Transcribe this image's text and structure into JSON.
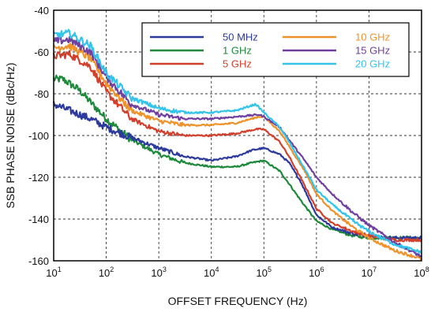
{
  "chart_data": {
    "type": "line",
    "title": "",
    "xlabel": "OFFSET FREQUENCY (Hz)",
    "ylabel": "SSB PHASE NOISE (dBc/Hz)",
    "x_scale": "log",
    "xlim": [
      10,
      100000000
    ],
    "ylim": [
      -160,
      -40
    ],
    "grid": true,
    "legend_position": "top-right",
    "x_ticks": [
      {
        "value": 10,
        "base": "10",
        "exp": "1"
      },
      {
        "value": 100,
        "base": "10",
        "exp": "2"
      },
      {
        "value": 1000,
        "base": "10",
        "exp": "3"
      },
      {
        "value": 10000,
        "base": "10",
        "exp": "4"
      },
      {
        "value": 100000,
        "base": "10",
        "exp": "5"
      },
      {
        "value": 1000000,
        "base": "10",
        "exp": "6"
      },
      {
        "value": 10000000,
        "base": "10",
        "exp": "7"
      },
      {
        "value": 100000000,
        "base": "10",
        "exp": "8"
      }
    ],
    "y_ticks": [
      -40,
      -60,
      -80,
      -100,
      -120,
      -140,
      -160
    ],
    "series": [
      {
        "name": "50 MHz",
        "color": "#2b3a9c",
        "x": [
          10,
          20,
          50,
          100,
          300,
          1000,
          3000,
          10000,
          30000,
          60000,
          100000,
          200000,
          300000,
          500000,
          1000000,
          2000000,
          5000000,
          10000000,
          30000000,
          100000000
        ],
        "y": [
          -85,
          -88,
          -92,
          -96,
          -101,
          -106,
          -110,
          -112,
          -110,
          -107,
          -106,
          -109,
          -113,
          -122,
          -138,
          -144,
          -147,
          -148,
          -149,
          -149
        ]
      },
      {
        "name": "1 GHz",
        "color": "#1c8a3a",
        "x": [
          10,
          15,
          30,
          100,
          300,
          1000,
          3000,
          10000,
          30000,
          60000,
          100000,
          200000,
          300000,
          500000,
          1000000,
          2000000,
          5000000,
          10000000,
          30000000,
          100000000
        ],
        "y": [
          -73,
          -73,
          -78,
          -92,
          -102,
          -109,
          -113,
          -115,
          -115,
          -113,
          -112,
          -117,
          -123,
          -131,
          -141,
          -145,
          -148,
          -149,
          -149,
          -149
        ]
      },
      {
        "name": "5 GHz",
        "color": "#d2402c",
        "x": [
          10,
          20,
          50,
          100,
          300,
          1000,
          3000,
          10000,
          30000,
          70000,
          100000,
          200000,
          300000,
          600000,
          1000000,
          2000000,
          5000000,
          10000000,
          30000000,
          100000000
        ],
        "y": [
          -62,
          -61,
          -67,
          -79,
          -92,
          -98,
          -100,
          -100,
          -99,
          -97,
          -97,
          -103,
          -110,
          -124,
          -135,
          -142,
          -146,
          -148,
          -150,
          -150
        ]
      },
      {
        "name": "10 GHz",
        "color": "#f0922a",
        "x": [
          10,
          20,
          50,
          100,
          300,
          1000,
          3000,
          10000,
          30000,
          80000,
          100000,
          200000,
          300000,
          600000,
          1000000,
          2000000,
          5000000,
          10000000,
          30000000,
          100000000
        ],
        "y": [
          -58,
          -57,
          -63,
          -75,
          -88,
          -93,
          -95,
          -95,
          -94,
          -91,
          -91,
          -98,
          -105,
          -117,
          -128,
          -136,
          -144,
          -149,
          -155,
          -159
        ]
      },
      {
        "name": "15 GHz",
        "color": "#7040a0",
        "x": [
          10,
          20,
          50,
          100,
          300,
          1000,
          3000,
          10000,
          30000,
          80000,
          100000,
          200000,
          300000,
          600000,
          1000000,
          2000000,
          5000000,
          10000000,
          30000000,
          100000000
        ],
        "y": [
          -55,
          -54,
          -60,
          -72,
          -85,
          -90,
          -92,
          -92,
          -91,
          -90,
          -91,
          -96,
          -102,
          -112,
          -120,
          -128,
          -137,
          -143,
          -151,
          -158
        ]
      },
      {
        "name": "20 GHz",
        "color": "#33c4ec",
        "x": [
          10,
          20,
          50,
          100,
          300,
          1000,
          3000,
          10000,
          30000,
          70000,
          100000,
          200000,
          300000,
          600000,
          1000000,
          2000000,
          5000000,
          10000000,
          30000000,
          100000000
        ],
        "y": [
          -52,
          -51,
          -57,
          -70,
          -82,
          -87,
          -89,
          -89,
          -88,
          -85,
          -89,
          -96,
          -103,
          -116,
          -126,
          -133,
          -141,
          -146,
          -152,
          -156
        ]
      }
    ]
  }
}
